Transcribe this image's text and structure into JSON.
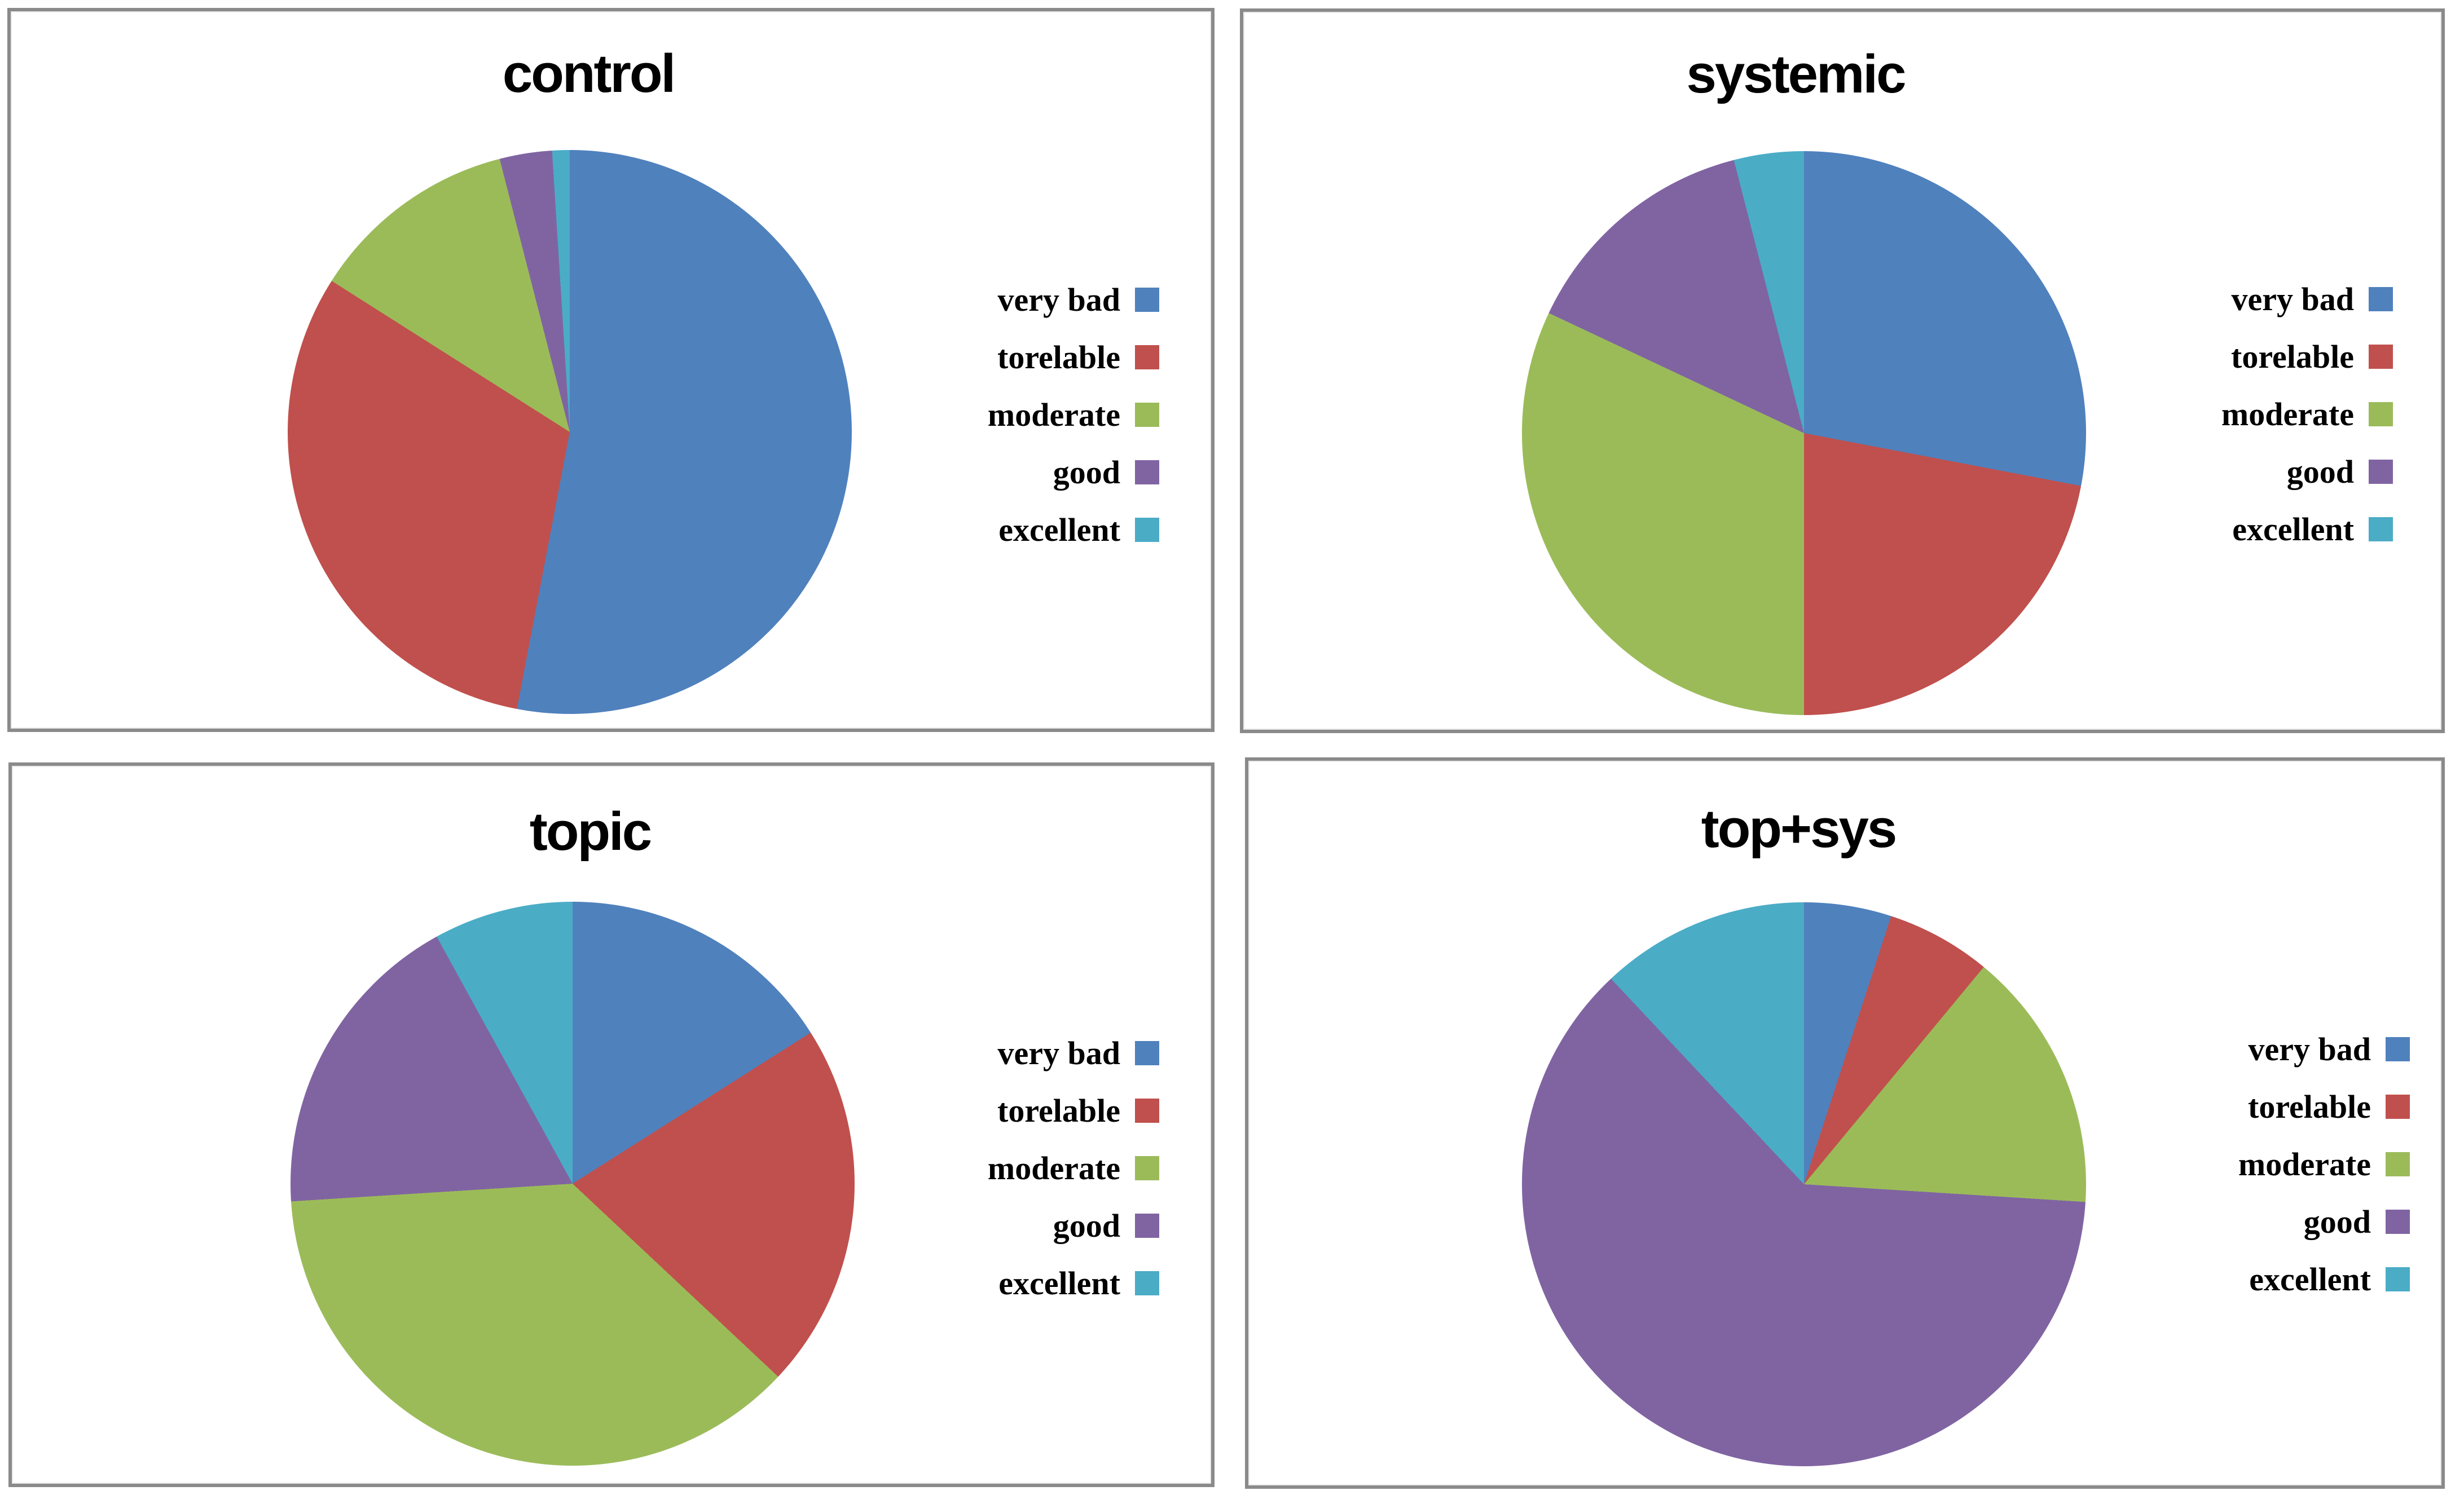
{
  "palette": {
    "very_bad": "#4F81BD",
    "torelable": "#C0504D",
    "moderate": "#9BBB59",
    "good": "#8064A2",
    "excellent": "#4BACC6"
  },
  "frame_border_color": "#8a8a8a",
  "background_color": "#ffffff",
  "legend": {
    "labels": [
      "very bad",
      "torelable",
      "moderate",
      "good",
      "excellent"
    ],
    "swatch_side": "right-of-text",
    "position": "right-of-pie"
  },
  "chart_data": [
    {
      "type": "pie",
      "title": "control",
      "labels": [
        "very bad",
        "torelable",
        "moderate",
        "good",
        "excellent"
      ],
      "values_percent": [
        53,
        31,
        12,
        3,
        1
      ],
      "colors": [
        "#4F81BD",
        "#C0504D",
        "#9BBB59",
        "#8064A2",
        "#4BACC6"
      ],
      "start_angle_deg": 0,
      "direction": "clockwise",
      "legend_position": "right"
    },
    {
      "type": "pie",
      "title": "systemic",
      "labels": [
        "very bad",
        "torelable",
        "moderate",
        "good",
        "excellent"
      ],
      "values_percent": [
        28,
        22,
        32,
        14,
        4
      ],
      "colors": [
        "#4F81BD",
        "#C0504D",
        "#9BBB59",
        "#8064A2",
        "#4BACC6"
      ],
      "start_angle_deg": 0,
      "direction": "clockwise",
      "legend_position": "right"
    },
    {
      "type": "pie",
      "title": "topic",
      "labels": [
        "very bad",
        "torelable",
        "moderate",
        "good",
        "excellent"
      ],
      "values_percent": [
        16,
        21,
        37,
        18,
        8
      ],
      "colors": [
        "#4F81BD",
        "#C0504D",
        "#9BBB59",
        "#8064A2",
        "#4BACC6"
      ],
      "start_angle_deg": 0,
      "direction": "clockwise",
      "legend_position": "right"
    },
    {
      "type": "pie",
      "title": "top+sys",
      "labels": [
        "very bad",
        "torelable",
        "moderate",
        "good",
        "excellent"
      ],
      "values_percent": [
        5,
        6,
        15,
        62,
        12
      ],
      "colors": [
        "#4F81BD",
        "#C0504D",
        "#9BBB59",
        "#8064A2",
        "#4BACC6"
      ],
      "start_angle_deg": 0,
      "direction": "clockwise",
      "legend_position": "right"
    }
  ]
}
